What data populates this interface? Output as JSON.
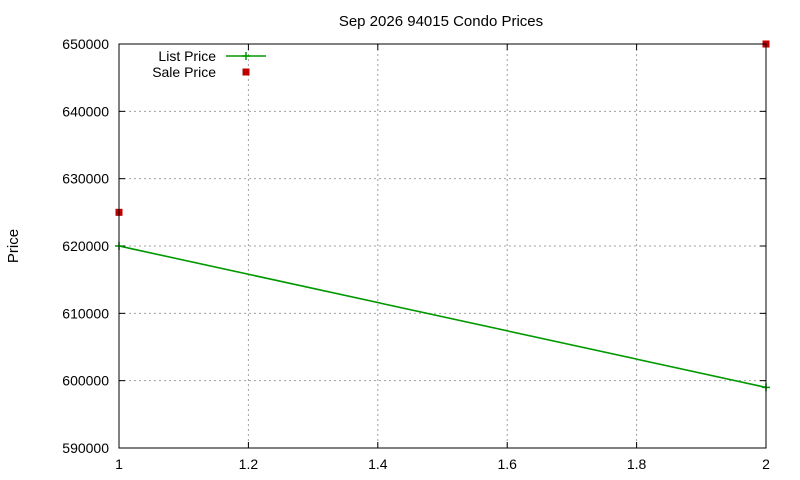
{
  "chart_data": {
    "type": "line",
    "title": "Sep 2026 94015 Condo Prices",
    "xlabel": "",
    "ylabel": "Price",
    "xlim": [
      1,
      2
    ],
    "ylim": [
      590000,
      650000
    ],
    "xticks": [
      "1",
      "1.2",
      "1.4",
      "1.6",
      "1.8",
      "2"
    ],
    "xtick_values": [
      1,
      1.2,
      1.4,
      1.6,
      1.8,
      2
    ],
    "yticks": [
      "590000",
      "600000",
      "610000",
      "620000",
      "630000",
      "640000",
      "650000"
    ],
    "ytick_values": [
      590000,
      600000,
      610000,
      620000,
      630000,
      640000,
      650000
    ],
    "grid": true,
    "legend_position": "top-left",
    "series": [
      {
        "name": "List Price",
        "style": "line-with-plus-markers",
        "color": "#009900",
        "points": [
          [
            1,
            620000
          ],
          [
            2,
            599000
          ]
        ]
      },
      {
        "name": "Sale Price",
        "style": "square-markers",
        "color": "#c00000",
        "points": [
          [
            1,
            625000
          ],
          [
            2,
            650000
          ]
        ]
      }
    ]
  }
}
